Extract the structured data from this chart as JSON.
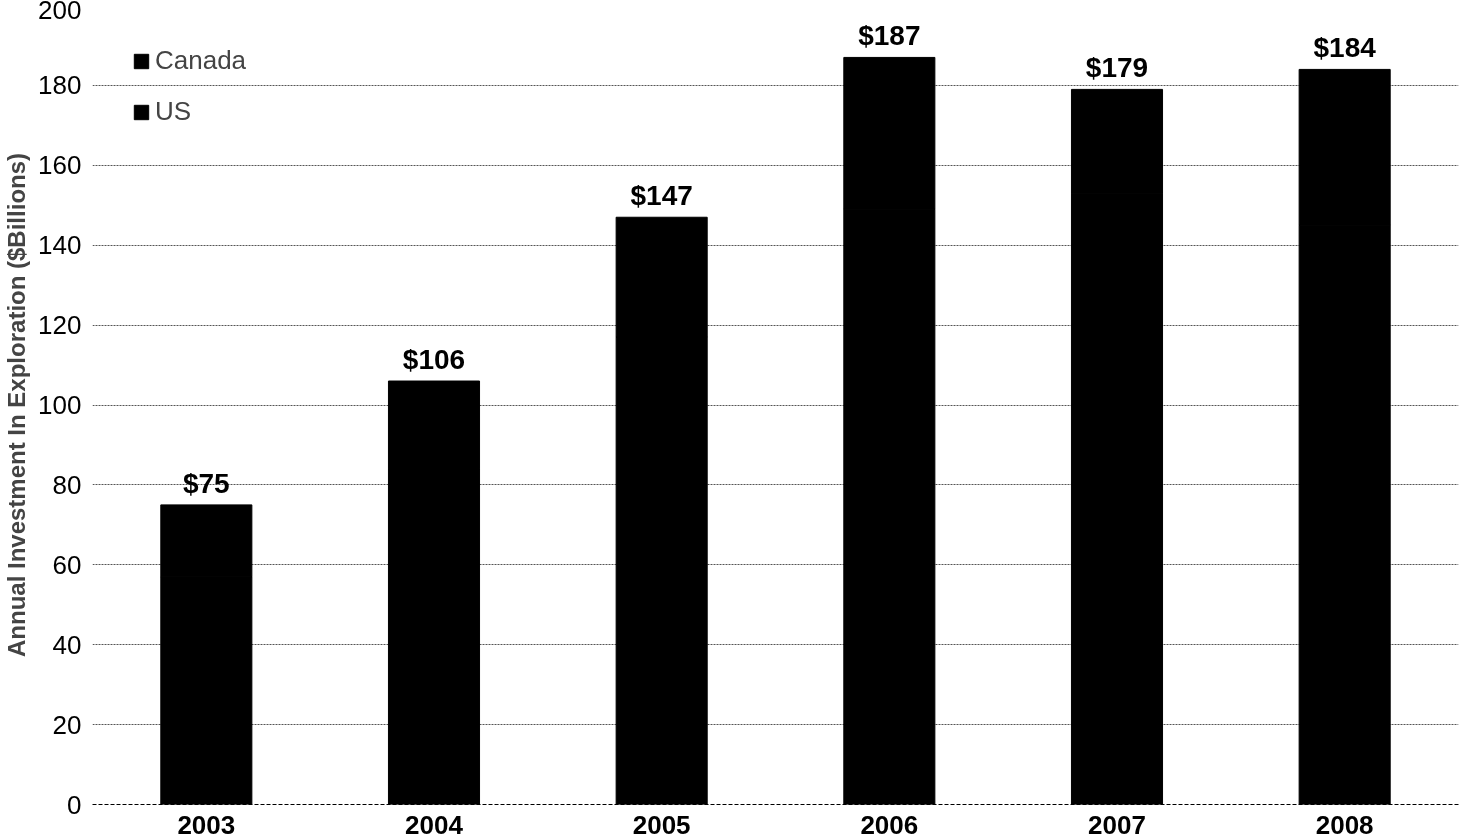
{
  "chart_data": {
    "type": "bar",
    "stacked": true,
    "ylabel": "Annual Investment In Exploration ($Billions)",
    "categories": [
      "2003",
      "2004",
      "2005",
      "2006",
      "2007",
      "2008"
    ],
    "series": [
      {
        "name": "US",
        "color": "#000000",
        "values": [
          57,
          84,
          117,
          149,
          153,
          145
        ]
      },
      {
        "name": "Canada",
        "color": "#000000",
        "values": [
          18,
          22,
          30,
          38,
          26,
          39
        ]
      }
    ],
    "totals": [
      "$75",
      "$106",
      "$147",
      "$187",
      "$179",
      "$184"
    ],
    "ylim": [
      0,
      200
    ],
    "yticks": [
      0,
      20,
      40,
      60,
      80,
      100,
      120,
      140,
      160,
      180,
      200
    ],
    "grid": "y",
    "legend": "top left"
  }
}
